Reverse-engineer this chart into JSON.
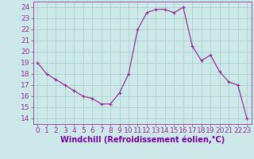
{
  "x": [
    0,
    1,
    2,
    3,
    4,
    5,
    6,
    7,
    8,
    9,
    10,
    11,
    12,
    13,
    14,
    15,
    16,
    17,
    18,
    19,
    20,
    21,
    22,
    23
  ],
  "y": [
    19,
    18,
    17.5,
    17,
    16.5,
    16,
    15.8,
    15.3,
    15.3,
    16.3,
    18.0,
    22,
    23.5,
    23.8,
    23.8,
    23.5,
    24.0,
    20.5,
    19.2,
    19.7,
    18.2,
    17.3,
    17.0,
    14
  ],
  "line_color": "#993399",
  "marker_color": "#993399",
  "bg_color": "#cce8e8",
  "grid_color": "#aacccc",
  "xlabel": "Windchill (Refroidissement éolien,°C)",
  "xlabel_color": "#7700aa",
  "tick_color": "#993399",
  "ylim": [
    13.5,
    24.5
  ],
  "xlim": [
    -0.5,
    23.5
  ],
  "yticks": [
    14,
    15,
    16,
    17,
    18,
    19,
    20,
    21,
    22,
    23,
    24
  ],
  "xticks": [
    0,
    1,
    2,
    3,
    4,
    5,
    6,
    7,
    8,
    9,
    10,
    11,
    12,
    13,
    14,
    15,
    16,
    17,
    18,
    19,
    20,
    21,
    22,
    23
  ],
  "tick_fontsize": 6.5,
  "xlabel_fontsize": 7.0
}
